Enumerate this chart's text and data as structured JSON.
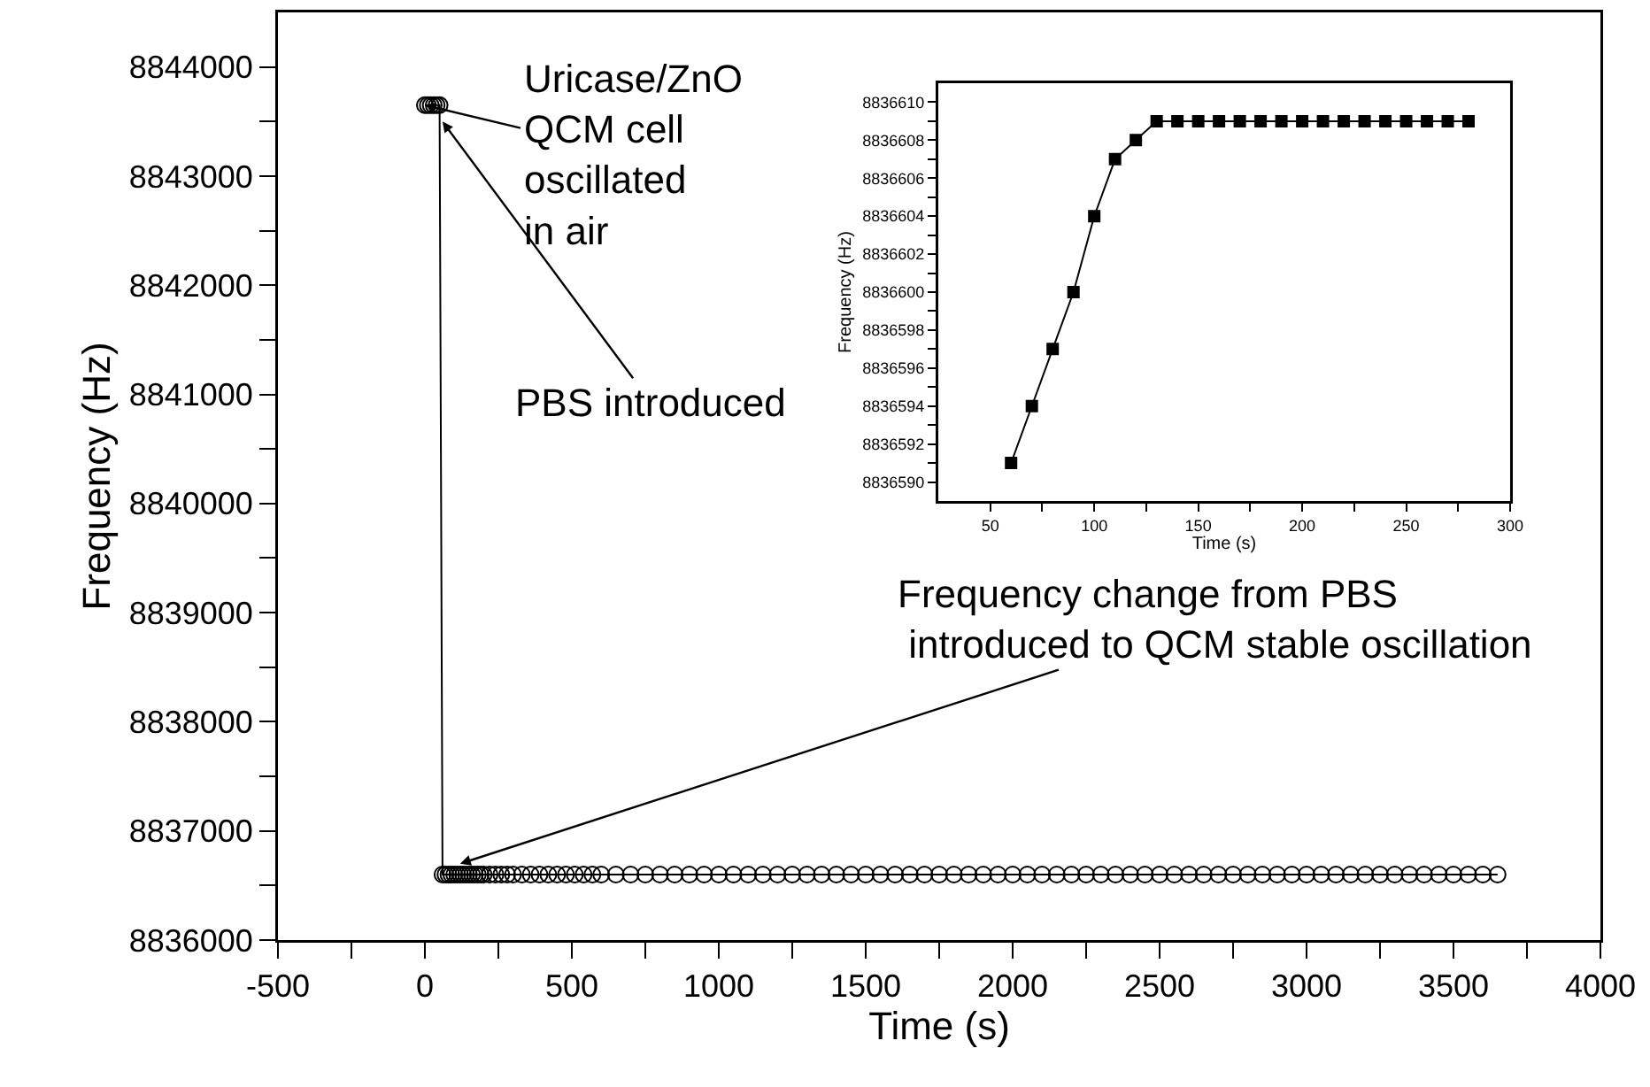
{
  "chart_data": [
    {
      "type": "line",
      "xlabel": "Time (s)",
      "ylabel": "Frequency (Hz)",
      "marker": "circle",
      "line_style": "solid",
      "grid": false,
      "xlim": [
        -500,
        4000
      ],
      "ylim": [
        8836000,
        8844500
      ],
      "xticks": [
        -500,
        {
          "value": -250,
          "label": null
        },
        0,
        {
          "value": 250,
          "label": null
        },
        500,
        {
          "value": 750,
          "label": null
        },
        1000,
        {
          "value": 1250,
          "label": null
        },
        1500,
        {
          "value": 1750,
          "label": null
        },
        2000,
        {
          "value": 2250,
          "label": null
        },
        2500,
        {
          "value": 2750,
          "label": null
        },
        3000,
        {
          "value": 3250,
          "label": null
        },
        3500,
        {
          "value": 3750,
          "label": null
        },
        4000
      ],
      "yticks": [
        8836000,
        {
          "value": 8836500,
          "label": null
        },
        8837000,
        {
          "value": 8837500,
          "label": null
        },
        8838000,
        {
          "value": 8838500,
          "label": null
        },
        8839000,
        {
          "value": 8839500,
          "label": null
        },
        8840000,
        {
          "value": 8840500,
          "label": null
        },
        8841000,
        {
          "value": 8841500,
          "label": null
        },
        8842000,
        {
          "value": 8842500,
          "label": null
        },
        8843000,
        {
          "value": 8843500,
          "label": null
        },
        8844000
      ],
      "series": [
        {
          "color": "#000000",
          "x": [
            0,
            10,
            20,
            30,
            40,
            50,
            60,
            70,
            80,
            90,
            100,
            110,
            120,
            130,
            140,
            150,
            160,
            170,
            180,
            190,
            200,
            220,
            240,
            260,
            280,
            300,
            330,
            360,
            390,
            420,
            450,
            480,
            510,
            540,
            570,
            600,
            650,
            700,
            750,
            800,
            850,
            900,
            950,
            1000,
            1050,
            1100,
            1150,
            1200,
            1250,
            1300,
            1350,
            1400,
            1450,
            1500,
            1550,
            1600,
            1650,
            1700,
            1750,
            1800,
            1850,
            1900,
            1950,
            2000,
            2050,
            2100,
            2150,
            2200,
            2250,
            2300,
            2350,
            2400,
            2450,
            2500,
            2550,
            2600,
            2650,
            2700,
            2750,
            2800,
            2850,
            2900,
            2950,
            3000,
            3050,
            3100,
            3150,
            3200,
            3250,
            3300,
            3350,
            3400,
            3450,
            3500,
            3550,
            3600,
            3650
          ],
          "values": [
            8843650,
            8843650,
            8843650,
            8843650,
            8843650,
            8843650,
            8836600,
            8836600,
            8836600,
            8836600,
            8836600,
            8836600,
            8836600,
            8836600,
            8836600,
            8836600,
            8836600,
            8836600,
            8836600,
            8836600,
            8836600,
            8836600,
            8836600,
            8836600,
            8836600,
            8836600,
            8836600,
            8836600,
            8836600,
            8836600,
            8836600,
            8836600,
            8836600,
            8836600,
            8836600,
            8836600,
            8836600,
            8836600,
            8836600,
            8836600,
            8836600,
            8836600,
            8836600,
            8836600,
            8836600,
            8836600,
            8836600,
            8836600,
            8836600,
            8836600,
            8836600,
            8836600,
            8836600,
            8836600,
            8836600,
            8836600,
            8836600,
            8836600,
            8836600,
            8836600,
            8836600,
            8836600,
            8836600,
            8836600,
            8836600,
            8836600,
            8836600,
            8836600,
            8836600,
            8836600,
            8836600,
            8836600,
            8836600,
            8836600,
            8836600,
            8836600,
            8836600,
            8836600,
            8836600,
            8836600,
            8836600,
            8836600,
            8836600,
            8836600,
            8836600,
            8836600,
            8836600,
            8836600,
            8836600,
            8836600,
            8836600,
            8836600,
            8836600,
            8836600,
            8836600,
            8836600,
            8836600
          ]
        }
      ],
      "annotations": [
        {
          "text": "Uricase/ZnO\nQCM cell\noscillated\nin air",
          "x": 0,
          "y": 8843650
        },
        {
          "text": "PBS introduced",
          "x": 60,
          "y": 8843500
        },
        {
          "text": "Frequency change from PBS\n introduced to QCM stable oscillation",
          "x": 120,
          "y": 8836700
        }
      ]
    },
    {
      "type": "line",
      "xlabel": "Time (s)",
      "ylabel": "Frequency (Hz)",
      "marker": "square",
      "line_style": "solid",
      "grid": false,
      "xlim": [
        25,
        300
      ],
      "ylim": [
        8836589,
        8836611
      ],
      "xticks": [
        50,
        {
          "value": 75,
          "label": null
        },
        100,
        {
          "value": 125,
          "label": null
        },
        150,
        {
          "value": 175,
          "label": null
        },
        200,
        {
          "value": 225,
          "label": null
        },
        250,
        {
          "value": 275,
          "label": null
        },
        300
      ],
      "yticks": [
        8836590,
        {
          "value": 8836591,
          "label": null
        },
        8836592,
        {
          "value": 8836593,
          "label": null
        },
        8836594,
        {
          "value": 8836595,
          "label": null
        },
        8836596,
        {
          "value": 8836597,
          "label": null
        },
        8836598,
        {
          "value": 8836599,
          "label": null
        },
        8836600,
        {
          "value": 8836601,
          "label": null
        },
        8836602,
        {
          "value": 8836603,
          "label": null
        },
        8836604,
        {
          "value": 8836605,
          "label": null
        },
        8836606,
        {
          "value": 8836607,
          "label": null
        },
        8836608,
        {
          "value": 8836609,
          "label": null
        },
        8836610
      ],
      "series": [
        {
          "color": "#000000",
          "x": [
            60,
            70,
            80,
            90,
            100,
            110,
            120,
            130,
            140,
            150,
            160,
            170,
            180,
            190,
            200,
            210,
            220,
            230,
            240,
            250,
            260,
            270,
            280
          ],
          "values": [
            8836591,
            8836594,
            8836597,
            8836600,
            8836604,
            8836607,
            8836608,
            8836609,
            8836609,
            8836609,
            8836609,
            8836609,
            8836609,
            8836609,
            8836609,
            8836609,
            8836609,
            8836609,
            8836609,
            8836609,
            8836609,
            8836609,
            8836609
          ]
        }
      ]
    }
  ]
}
